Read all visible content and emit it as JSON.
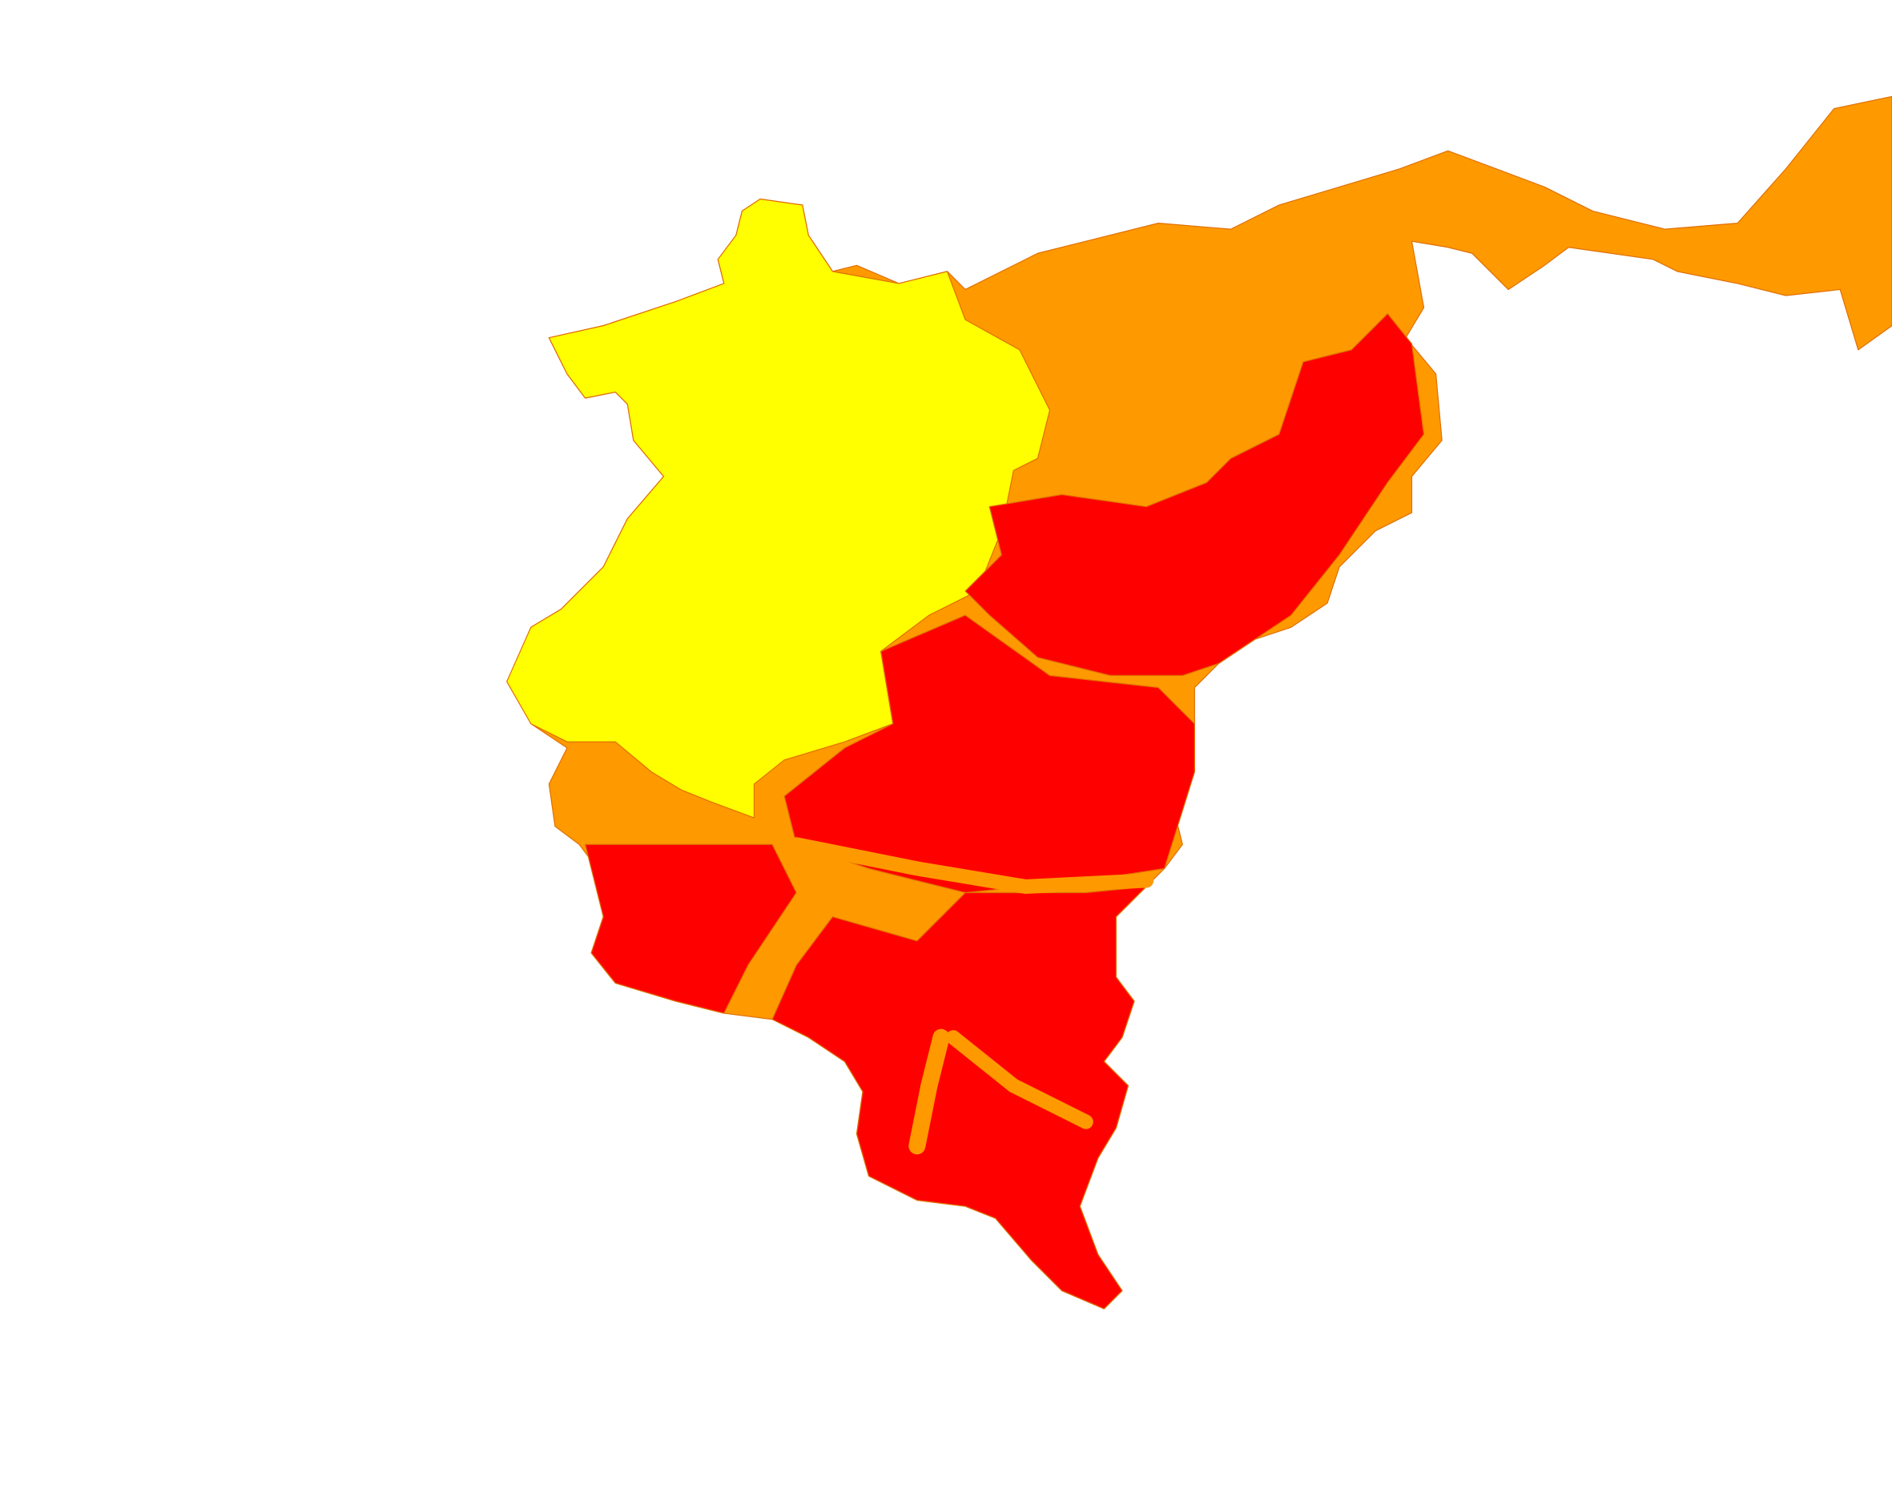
{
  "map": {
    "zone_colors": {
      "low": "#FFFF00",
      "medium": "#FF9900",
      "high": "#FF0000"
    },
    "background": "#FFFFFF",
    "zones": [
      {
        "id": "orange-base",
        "level": "medium"
      },
      {
        "id": "yellow-west",
        "level": "low"
      },
      {
        "id": "red-east",
        "level": "high"
      },
      {
        "id": "red-central",
        "level": "high"
      },
      {
        "id": "red-southwest",
        "level": "high"
      },
      {
        "id": "red-south",
        "level": "high"
      }
    ]
  }
}
